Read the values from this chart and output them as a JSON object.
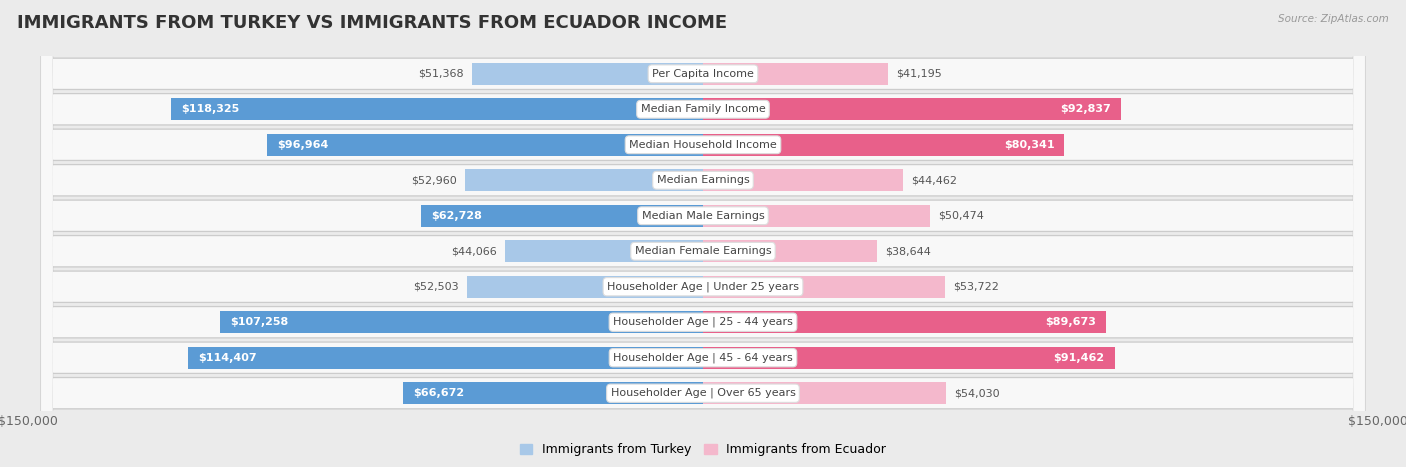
{
  "title": "IMMIGRANTS FROM TURKEY VS IMMIGRANTS FROM ECUADOR INCOME",
  "source": "Source: ZipAtlas.com",
  "categories": [
    "Per Capita Income",
    "Median Family Income",
    "Median Household Income",
    "Median Earnings",
    "Median Male Earnings",
    "Median Female Earnings",
    "Householder Age | Under 25 years",
    "Householder Age | 25 - 44 years",
    "Householder Age | 45 - 64 years",
    "Householder Age | Over 65 years"
  ],
  "turkey_values": [
    51368,
    118325,
    96964,
    52960,
    62728,
    44066,
    52503,
    107258,
    114407,
    66672
  ],
  "ecuador_values": [
    41195,
    92837,
    80341,
    44462,
    50474,
    38644,
    53722,
    89673,
    91462,
    54030
  ],
  "turkey_labels": [
    "$51,368",
    "$118,325",
    "$96,964",
    "$52,960",
    "$62,728",
    "$44,066",
    "$52,503",
    "$107,258",
    "$114,407",
    "$66,672"
  ],
  "ecuador_labels": [
    "$41,195",
    "$92,837",
    "$80,341",
    "$44,462",
    "$50,474",
    "$38,644",
    "$53,722",
    "$89,673",
    "$91,462",
    "$54,030"
  ],
  "turkey_color_light": "#a8c8e8",
  "turkey_color_dark": "#5b9bd5",
  "ecuador_color_light": "#f4b8cc",
  "ecuador_color_dark": "#e8608a",
  "max_value": 150000,
  "background_color": "#ebebeb",
  "row_bg_color": "#f8f8f8",
  "title_fontsize": 13,
  "label_fontsize": 8,
  "cat_fontsize": 8,
  "legend_label_turkey": "Immigrants from Turkey",
  "legend_label_ecuador": "Immigrants from Ecuador",
  "inside_threshold": 0.38
}
